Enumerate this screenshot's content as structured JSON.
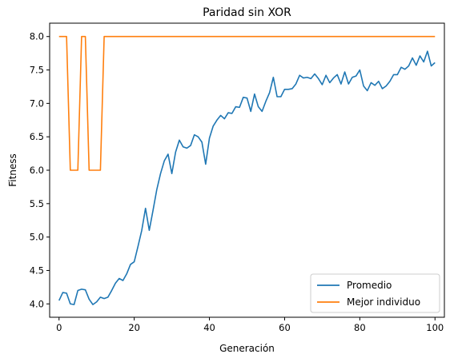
{
  "chart_data": {
    "type": "line",
    "title": "Paridad sin XOR",
    "xlabel": "Generación",
    "ylabel": "Fitness",
    "xlim": [
      -2.5,
      102.5
    ],
    "ylim": [
      3.8,
      8.2
    ],
    "x_ticks": [
      0,
      20,
      40,
      60,
      80,
      100
    ],
    "y_ticks": [
      4.0,
      4.5,
      5.0,
      5.5,
      6.0,
      6.5,
      7.0,
      7.5,
      8.0
    ],
    "grid": false,
    "legend_position": "lower-right",
    "x": [
      0,
      1,
      2,
      3,
      4,
      5,
      6,
      7,
      8,
      9,
      10,
      11,
      12,
      13,
      14,
      15,
      16,
      17,
      18,
      19,
      20,
      21,
      22,
      23,
      24,
      25,
      26,
      27,
      28,
      29,
      30,
      31,
      32,
      33,
      34,
      35,
      36,
      37,
      38,
      39,
      40,
      41,
      42,
      43,
      44,
      45,
      46,
      47,
      48,
      49,
      50,
      51,
      52,
      53,
      54,
      55,
      56,
      57,
      58,
      59,
      60,
      61,
      62,
      63,
      64,
      65,
      66,
      67,
      68,
      69,
      70,
      71,
      72,
      73,
      74,
      75,
      76,
      77,
      78,
      79,
      80,
      81,
      82,
      83,
      84,
      85,
      86,
      87,
      88,
      89,
      90,
      91,
      92,
      93,
      94,
      95,
      96,
      97,
      98,
      99,
      100
    ],
    "series": [
      {
        "name": "Promedio",
        "color": "#1f77b4",
        "values": [
          4.05,
          4.17,
          4.16,
          4.0,
          3.99,
          4.2,
          4.22,
          4.21,
          4.07,
          3.99,
          4.03,
          4.1,
          4.08,
          4.1,
          4.2,
          4.31,
          4.38,
          4.35,
          4.45,
          4.59,
          4.63,
          4.86,
          5.1,
          5.43,
          5.1,
          5.4,
          5.71,
          5.95,
          6.14,
          6.24,
          5.95,
          6.27,
          6.45,
          6.35,
          6.33,
          6.37,
          6.53,
          6.5,
          6.42,
          6.09,
          6.48,
          6.66,
          6.75,
          6.82,
          6.77,
          6.86,
          6.85,
          6.95,
          6.94,
          7.09,
          7.08,
          6.88,
          7.14,
          6.95,
          6.88,
          7.03,
          7.16,
          7.39,
          7.1,
          7.1,
          7.21,
          7.21,
          7.22,
          7.29,
          7.42,
          7.38,
          7.39,
          7.37,
          7.44,
          7.37,
          7.28,
          7.42,
          7.31,
          7.38,
          7.43,
          7.29,
          7.47,
          7.29,
          7.39,
          7.41,
          7.5,
          7.26,
          7.19,
          7.31,
          7.27,
          7.33,
          7.22,
          7.26,
          7.33,
          7.43,
          7.43,
          7.54,
          7.51,
          7.56,
          7.68,
          7.57,
          7.71,
          7.62,
          7.78,
          7.56,
          7.61
        ]
      },
      {
        "name": "Mejor individuo",
        "color": "#ff7f0e",
        "values": [
          8,
          8,
          8,
          6,
          6,
          6,
          8,
          8,
          6,
          6,
          6,
          6,
          8,
          8,
          8,
          8,
          8,
          8,
          8,
          8,
          8,
          8,
          8,
          8,
          8,
          8,
          8,
          8,
          8,
          8,
          8,
          8,
          8,
          8,
          8,
          8,
          8,
          8,
          8,
          8,
          8,
          8,
          8,
          8,
          8,
          8,
          8,
          8,
          8,
          8,
          8,
          8,
          8,
          8,
          8,
          8,
          8,
          8,
          8,
          8,
          8,
          8,
          8,
          8,
          8,
          8,
          8,
          8,
          8,
          8,
          8,
          8,
          8,
          8,
          8,
          8,
          8,
          8,
          8,
          8,
          8,
          8,
          8,
          8,
          8,
          8,
          8,
          8,
          8,
          8,
          8,
          8,
          8,
          8,
          8,
          8,
          8,
          8,
          8,
          8,
          8
        ]
      }
    ]
  }
}
